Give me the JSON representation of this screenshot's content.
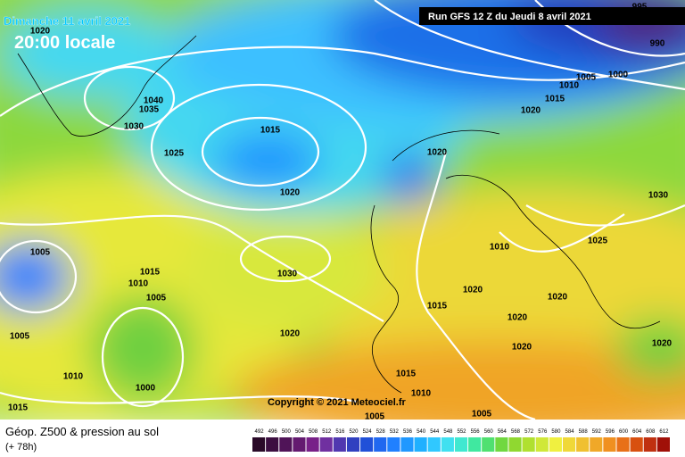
{
  "header": {
    "date": "Dimanche 11 avril 2021",
    "time": "20:00 locale",
    "run": "Run GFS 12 Z du Jeudi 8 avril 2021"
  },
  "copyright": "Copyright © 2021 Meteociel.fr",
  "legend": {
    "title": "Géop. Z500 & pression au sol",
    "lead": "(+ 78h)",
    "labels": [
      "492",
      "496",
      "500",
      "504",
      "508",
      "512",
      "516",
      "520",
      "524",
      "528",
      "532",
      "536",
      "540",
      "544",
      "548",
      "552",
      "556",
      "560",
      "564",
      "568",
      "572",
      "576",
      "580",
      "584",
      "588",
      "592",
      "596",
      "600",
      "604",
      "608",
      "612"
    ]
  },
  "isobar_labels": [
    "995",
    "990",
    "1000",
    "1005",
    "1010",
    "1015",
    "1020",
    "1020",
    "1040",
    "1035",
    "1030",
    "1025",
    "1015",
    "1020",
    "1020",
    "1005",
    "1015",
    "1010",
    "1005",
    "1030",
    "1005",
    "1020",
    "1010",
    "1000",
    "1015",
    "1015",
    "1015",
    "1010",
    "1005",
    "1005",
    "1020",
    "1010",
    "1020",
    "1020",
    "1020",
    "1025",
    "1030",
    "1020"
  ]
}
